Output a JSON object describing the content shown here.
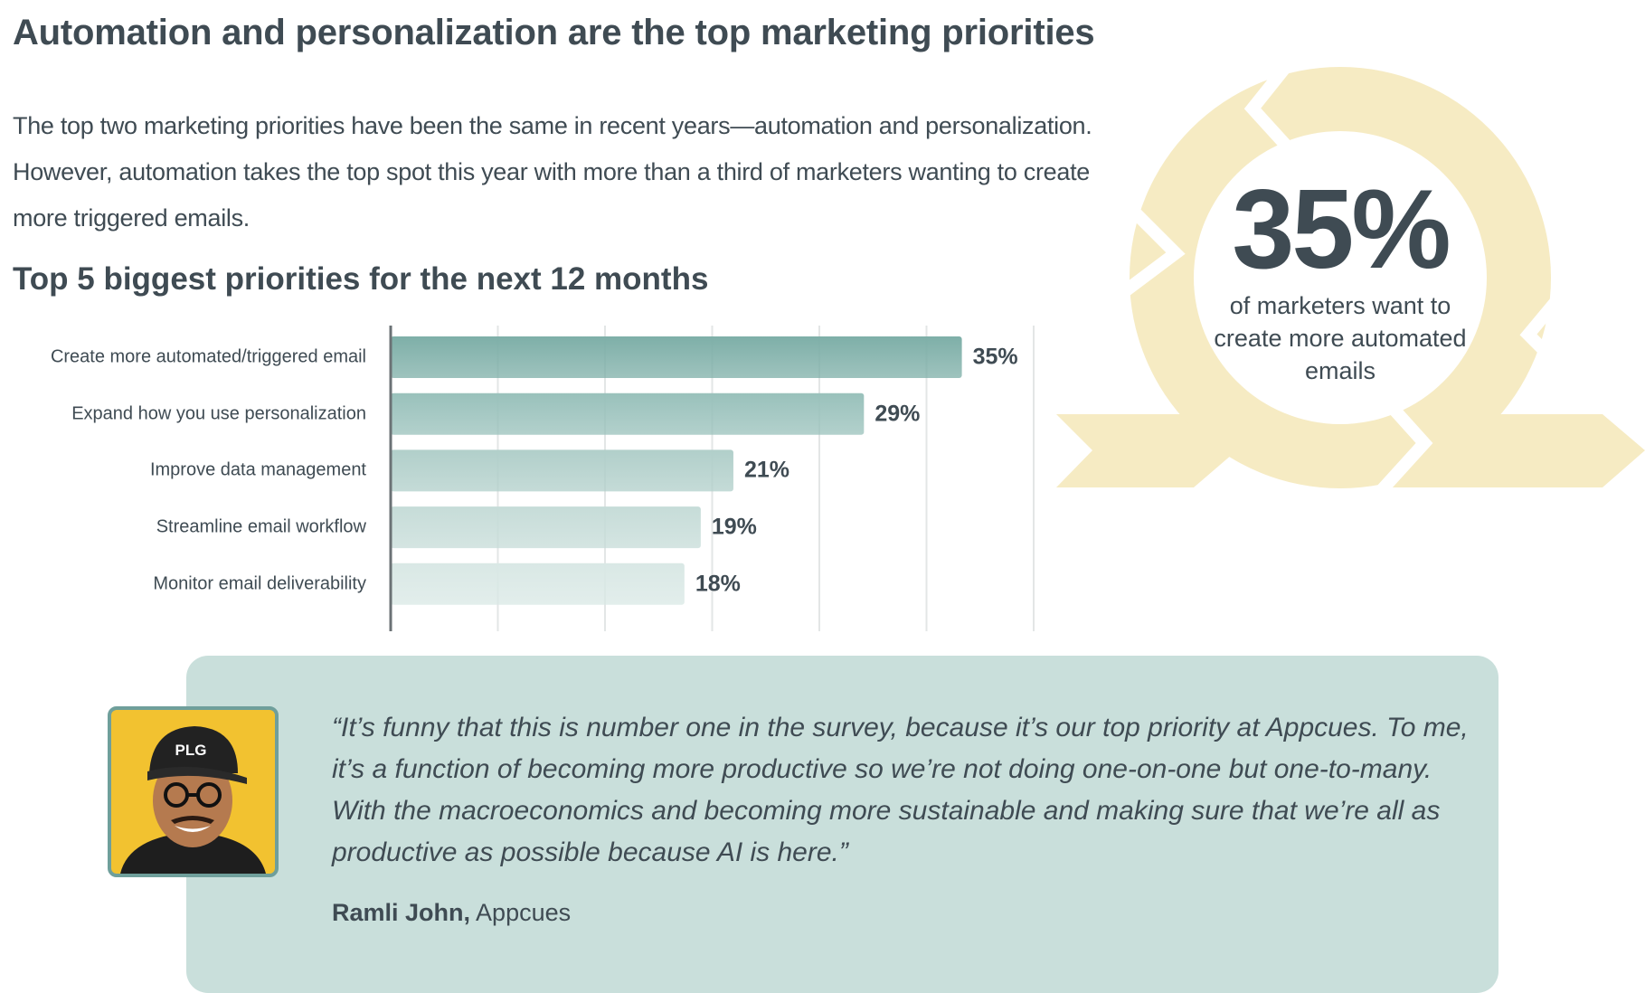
{
  "title": "Automation and personalization are the top marketing priorities",
  "intro": "The top two marketing priorities have been the same in recent years—automation and personalization. However, automation takes the top spot this year with more than a third of marketers wanting to create more triggered emails.",
  "subtitle": "Top 5 biggest priorities for the next 12 months",
  "chart_data": {
    "type": "bar",
    "orientation": "horizontal",
    "title": "Top 5 biggest priorities for the next 12 months",
    "categories": [
      "Create more automated/triggered email",
      "Expand how you use personalization",
      "Improve data management",
      "Streamline email workflow",
      "Monitor email deliverability"
    ],
    "values": [
      35,
      29,
      21,
      19,
      18
    ],
    "value_labels": [
      "35%",
      "29%",
      "21%",
      "19%",
      "18%"
    ],
    "xlim": [
      0,
      39.4
    ],
    "grid": true,
    "colors": [
      "#7eafa8",
      "#99c1bb",
      "#b1cfca",
      "#c6dcd8",
      "#d9e8e5"
    ]
  },
  "callout": {
    "stat": "35%",
    "text": "of marketers want to create more automated emails",
    "ring_color": "#f6ebc3"
  },
  "quote": {
    "text": "“It’s funny that this is number one in the survey, because it’s our top priority at Appcues. To me, it’s a function of becoming more productive so we’re not doing one-on-one but one-to-many. With the macroeconomics and becoming more sustainable and making sure that we’re all as productive as possible because AI is here.”",
    "author": "Ramli John,",
    "company": "Appcues",
    "cap_text": "PLG"
  }
}
